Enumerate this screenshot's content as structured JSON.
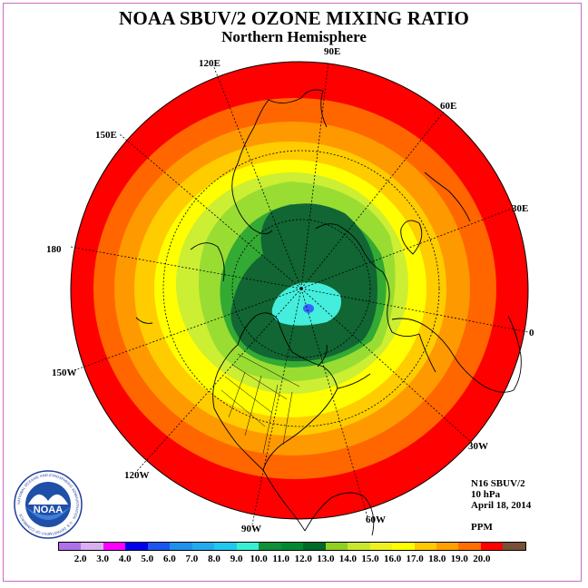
{
  "title": "NOAA SBUV/2 OZONE MIXING RATIO",
  "subtitle": "Northern Hemisphere",
  "info": {
    "instrument": "N16 SBUV/2",
    "level": "10 hPa",
    "date": "April 18, 2014",
    "units": "PPM"
  },
  "longitude_labels": [
    "120E",
    "90E",
    "60E",
    "150E",
    "30E",
    "180",
    "0",
    "150W",
    "30W",
    "120W",
    "60W",
    "90W"
  ],
  "colorbar": {
    "ticks": [
      "2.0",
      "3.0",
      "4.0",
      "5.0",
      "6.0",
      "7.0",
      "8.0",
      "9.0",
      "10.0",
      "11.0",
      "12.0",
      "13.0",
      "14.0",
      "15.0",
      "16.0",
      "17.0",
      "18.0",
      "19.0",
      "20.0"
    ],
    "colors": [
      "#b070e8",
      "#d8b0f0",
      "#ff00ff",
      "#0000ee",
      "#1a55ee",
      "#1e90ee",
      "#22aaf0",
      "#20c8f0",
      "#38f0d0",
      "#109038",
      "#008a30",
      "#006a28",
      "#90d020",
      "#c8e830",
      "#eef020",
      "#ffff00",
      "#ffc800",
      "#ffa000",
      "#ff7000",
      "#ff0000",
      "#785038"
    ]
  },
  "logo": {
    "text": "NOAA",
    "ring_text": "NATIONAL OCEANIC AND ATMOSPHERIC ADMINISTRATION · U.S. DEPARTMENT OF COMMERCE"
  },
  "map_colors": {
    "red": "#ff0000",
    "brown": "#785038",
    "orange_red": "#ff6600",
    "orange": "#ff9900",
    "gold": "#ffcc00",
    "yellow": "#ffff00",
    "yellow_green": "#ccee33",
    "light_green": "#99dd33",
    "green": "#33aa33",
    "dark_green": "#116633",
    "cyan": "#44eedd",
    "blue": "#3366ff"
  }
}
